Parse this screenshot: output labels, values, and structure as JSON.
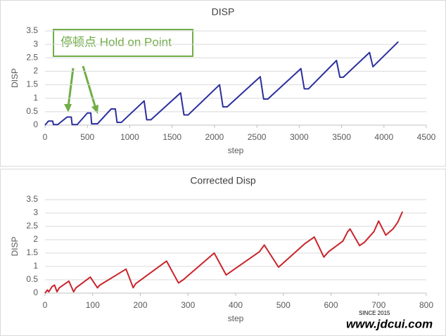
{
  "chart_data": [
    {
      "type": "line",
      "title": "DISP",
      "xlabel": "step",
      "ylabel": "DISP",
      "annotation": "停顿点 Hold on Point",
      "xlim": [
        0,
        4500
      ],
      "xticks": [
        0,
        500,
        1000,
        1500,
        2000,
        2500,
        3000,
        3500,
        4000,
        4500
      ],
      "ylim": [
        0,
        3.5
      ],
      "yticks": [
        0,
        0.5,
        1,
        1.5,
        2,
        2.5,
        3,
        3.5
      ],
      "grid": true,
      "series": [
        {
          "name": "DISP",
          "color": "#2b2f9e",
          "x": [
            0,
            40,
            90,
            100,
            150,
            260,
            310,
            320,
            380,
            500,
            540,
            550,
            620,
            780,
            830,
            850,
            900,
            1170,
            1200,
            1250,
            1600,
            1640,
            1690,
            2060,
            2100,
            2150,
            2540,
            2580,
            2630,
            3020,
            3060,
            3110,
            3440,
            3480,
            3520,
            3830,
            3870,
            4170
          ],
          "values": [
            0,
            0.15,
            0.15,
            0.02,
            0.02,
            0.3,
            0.3,
            0.02,
            0.02,
            0.45,
            0.45,
            0.05,
            0.05,
            0.6,
            0.6,
            0.1,
            0.1,
            0.9,
            0.2,
            0.2,
            1.2,
            0.38,
            0.38,
            1.5,
            0.68,
            0.68,
            1.8,
            0.97,
            0.97,
            2.1,
            1.35,
            1.35,
            2.4,
            1.78,
            1.78,
            2.7,
            2.17,
            3.1
          ]
        }
      ]
    },
    {
      "type": "line",
      "title": "Corrected Disp",
      "xlabel": "step",
      "ylabel": "DISP",
      "xlim": [
        0,
        800
      ],
      "xticks": [
        0,
        100,
        200,
        300,
        400,
        500,
        600,
        700,
        800
      ],
      "ylim": [
        0,
        3.5
      ],
      "yticks": [
        0,
        0.5,
        1,
        1.5,
        2,
        2.5,
        3,
        3.5
      ],
      "grid": true,
      "series": [
        {
          "name": "Corrected Disp",
          "color": "#c8242b",
          "x": [
            0,
            5,
            8,
            15,
            20,
            25,
            30,
            50,
            60,
            65,
            95,
            110,
            115,
            170,
            185,
            190,
            255,
            280,
            290,
            355,
            380,
            450,
            460,
            490,
            545,
            565,
            585,
            595,
            625,
            635,
            640,
            660,
            670,
            690,
            700,
            715,
            730,
            740,
            750
          ],
          "values": [
            0,
            0.12,
            0.05,
            0.25,
            0.3,
            0.05,
            0.2,
            0.45,
            0.05,
            0.2,
            0.6,
            0.2,
            0.3,
            0.9,
            0.2,
            0.35,
            1.2,
            0.38,
            0.5,
            1.5,
            0.68,
            1.55,
            1.8,
            0.97,
            1.85,
            2.1,
            1.35,
            1.55,
            1.95,
            2.3,
            2.4,
            1.78,
            1.9,
            2.3,
            2.7,
            2.17,
            2.4,
            2.65,
            3.05
          ]
        }
      ]
    }
  ],
  "watermark": {
    "since": "SINCE 2015",
    "url": "www.jdcui.com"
  }
}
